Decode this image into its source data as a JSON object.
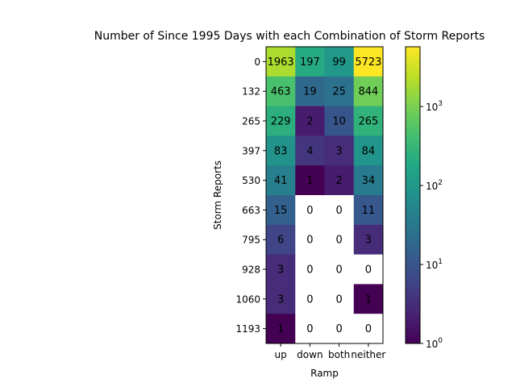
{
  "chart_data": {
    "type": "heatmap",
    "title": "Number of Since 1995 Days with each Combination of Storm Reports",
    "xlabel": "Ramp",
    "ylabel": "Storm Reports",
    "x_categories": [
      "up",
      "down",
      "both",
      "neither"
    ],
    "y_categories": [
      "0",
      "132",
      "265",
      "397",
      "530",
      "663",
      "795",
      "928",
      "1060",
      "1193"
    ],
    "values": [
      [
        1963,
        197,
        99,
        5723
      ],
      [
        463,
        19,
        25,
        844
      ],
      [
        229,
        2,
        10,
        265
      ],
      [
        83,
        4,
        3,
        84
      ],
      [
        41,
        1,
        2,
        34
      ],
      [
        15,
        0,
        0,
        11
      ],
      [
        6,
        0,
        0,
        3
      ],
      [
        3,
        0,
        0,
        0
      ],
      [
        3,
        0,
        0,
        1
      ],
      [
        1,
        0,
        0,
        0
      ]
    ],
    "colorscale": "viridis",
    "color_scale_type": "log",
    "zero_color": "#ffffff",
    "colorbar": {
      "range": [
        1,
        5723
      ],
      "tick_labels": [
        "10^0",
        "10^1",
        "10^2",
        "10^3"
      ],
      "tick_values": [
        1,
        10,
        100,
        1000
      ]
    }
  }
}
